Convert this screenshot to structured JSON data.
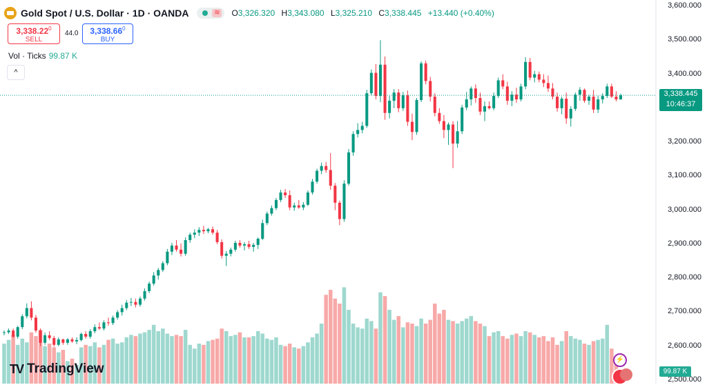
{
  "header": {
    "symbol_title": "Gold Spot / U.S. Dollar · 1D · OANDA",
    "logo_icon": "gold-bar-icon",
    "market_status_icon": "market-open-dot-icon",
    "wave_icon": "data-wave-icon",
    "open_label": "O",
    "open_value": "3,326.320",
    "high_label": "H",
    "high_value": "3,343.080",
    "low_label": "L",
    "low_value": "3,325.210",
    "close_label": "C",
    "close_value": "3,338.445",
    "change_value": "+13.440 (+0.40%)"
  },
  "trade": {
    "sell_price": "3,338.22",
    "sell_price_sup": "0",
    "sell_label": "SELL",
    "spread": "44.0",
    "buy_price": "3,338.66",
    "buy_price_sup": "0",
    "buy_label": "BUY"
  },
  "volume_legend": {
    "label": "Vol · Ticks",
    "value": "99.87 K",
    "collapse_icon": "chevron-up-icon",
    "collapse_glyph": "^"
  },
  "branding": {
    "mark": "TV",
    "name": "TradingView"
  },
  "price_axis": {
    "ticks": [
      "3,600.000",
      "3,500.000",
      "3,400.000",
      "3,300.000",
      "3,200.000",
      "3,100.000",
      "3,000.000",
      "2,900.000",
      "2,800.000",
      "2,700.000",
      "2,600.000",
      "2,500.000"
    ],
    "current_price": "3,338.445",
    "countdown": "10:46:37",
    "volume_tag": "99.87 K"
  },
  "colors": {
    "up": "#089981",
    "down": "#f23645",
    "up_volume": "#9ed8cf",
    "down_volume": "#f7a9a8"
  },
  "events": {
    "event_icon": "lightning-icon",
    "event_glyph": "⚡",
    "flags_icon": "us-flag-icon"
  },
  "chart_data": {
    "type": "candlestick",
    "ylim": [
      2500,
      3600
    ],
    "candles": [
      {
        "o": 2640,
        "h": 2646,
        "l": 2632,
        "c": 2641,
        "v": 64
      },
      {
        "o": 2641,
        "h": 2652,
        "l": 2636,
        "c": 2646,
        "v": 70
      },
      {
        "o": 2646,
        "h": 2652,
        "l": 2624,
        "c": 2628,
        "v": 78
      },
      {
        "o": 2628,
        "h": 2660,
        "l": 2622,
        "c": 2656,
        "v": 62
      },
      {
        "o": 2656,
        "h": 2694,
        "l": 2650,
        "c": 2688,
        "v": 72
      },
      {
        "o": 2688,
        "h": 2726,
        "l": 2682,
        "c": 2712,
        "v": 66
      },
      {
        "o": 2712,
        "h": 2732,
        "l": 2676,
        "c": 2684,
        "v": 82
      },
      {
        "o": 2684,
        "h": 2692,
        "l": 2640,
        "c": 2646,
        "v": 76
      },
      {
        "o": 2646,
        "h": 2652,
        "l": 2600,
        "c": 2610,
        "v": 86
      },
      {
        "o": 2610,
        "h": 2640,
        "l": 2604,
        "c": 2632,
        "v": 60
      },
      {
        "o": 2632,
        "h": 2644,
        "l": 2618,
        "c": 2624,
        "v": 64
      },
      {
        "o": 2624,
        "h": 2630,
        "l": 2598,
        "c": 2604,
        "v": 58
      },
      {
        "o": 2604,
        "h": 2626,
        "l": 2600,
        "c": 2620,
        "v": 50
      },
      {
        "o": 2620,
        "h": 2622,
        "l": 2604,
        "c": 2610,
        "v": 54
      },
      {
        "o": 2610,
        "h": 2624,
        "l": 2604,
        "c": 2620,
        "v": 36
      },
      {
        "o": 2620,
        "h": 2626,
        "l": 2610,
        "c": 2614,
        "v": 40
      },
      {
        "o": 2614,
        "h": 2626,
        "l": 2606,
        "c": 2618,
        "v": 30
      },
      {
        "o": 2618,
        "h": 2640,
        "l": 2614,
        "c": 2636,
        "v": 58
      },
      {
        "o": 2636,
        "h": 2644,
        "l": 2622,
        "c": 2628,
        "v": 62
      },
      {
        "o": 2628,
        "h": 2650,
        "l": 2622,
        "c": 2644,
        "v": 60
      },
      {
        "o": 2644,
        "h": 2664,
        "l": 2638,
        "c": 2656,
        "v": 66
      },
      {
        "o": 2656,
        "h": 2670,
        "l": 2648,
        "c": 2652,
        "v": 58
      },
      {
        "o": 2652,
        "h": 2676,
        "l": 2646,
        "c": 2670,
        "v": 62
      },
      {
        "o": 2670,
        "h": 2684,
        "l": 2660,
        "c": 2668,
        "v": 70
      },
      {
        "o": 2668,
        "h": 2690,
        "l": 2662,
        "c": 2684,
        "v": 72
      },
      {
        "o": 2684,
        "h": 2706,
        "l": 2678,
        "c": 2700,
        "v": 64
      },
      {
        "o": 2700,
        "h": 2722,
        "l": 2690,
        "c": 2712,
        "v": 66
      },
      {
        "o": 2712,
        "h": 2736,
        "l": 2706,
        "c": 2728,
        "v": 74
      },
      {
        "o": 2728,
        "h": 2742,
        "l": 2718,
        "c": 2730,
        "v": 78
      },
      {
        "o": 2730,
        "h": 2740,
        "l": 2714,
        "c": 2722,
        "v": 76
      },
      {
        "o": 2722,
        "h": 2746,
        "l": 2716,
        "c": 2740,
        "v": 80
      },
      {
        "o": 2740,
        "h": 2770,
        "l": 2734,
        "c": 2762,
        "v": 82
      },
      {
        "o": 2762,
        "h": 2790,
        "l": 2756,
        "c": 2784,
        "v": 86
      },
      {
        "o": 2784,
        "h": 2818,
        "l": 2778,
        "c": 2808,
        "v": 94
      },
      {
        "o": 2808,
        "h": 2830,
        "l": 2796,
        "c": 2824,
        "v": 84
      },
      {
        "o": 2824,
        "h": 2850,
        "l": 2818,
        "c": 2844,
        "v": 88
      },
      {
        "o": 2844,
        "h": 2886,
        "l": 2838,
        "c": 2878,
        "v": 80
      },
      {
        "o": 2878,
        "h": 2904,
        "l": 2868,
        "c": 2896,
        "v": 76
      },
      {
        "o": 2896,
        "h": 2912,
        "l": 2878,
        "c": 2884,
        "v": 78
      },
      {
        "o": 2884,
        "h": 2902,
        "l": 2864,
        "c": 2872,
        "v": 76
      },
      {
        "o": 2872,
        "h": 2920,
        "l": 2866,
        "c": 2912,
        "v": 86
      },
      {
        "o": 2912,
        "h": 2934,
        "l": 2904,
        "c": 2928,
        "v": 62
      },
      {
        "o": 2928,
        "h": 2944,
        "l": 2918,
        "c": 2934,
        "v": 56
      },
      {
        "o": 2934,
        "h": 2950,
        "l": 2924,
        "c": 2942,
        "v": 64
      },
      {
        "o": 2942,
        "h": 2954,
        "l": 2930,
        "c": 2938,
        "v": 62
      },
      {
        "o": 2938,
        "h": 2948,
        "l": 2932,
        "c": 2944,
        "v": 68
      },
      {
        "o": 2944,
        "h": 2952,
        "l": 2928,
        "c": 2934,
        "v": 70
      },
      {
        "o": 2934,
        "h": 2942,
        "l": 2900,
        "c": 2906,
        "v": 72
      },
      {
        "o": 2906,
        "h": 2914,
        "l": 2858,
        "c": 2866,
        "v": 88
      },
      {
        "o": 2866,
        "h": 2880,
        "l": 2836,
        "c": 2872,
        "v": 84
      },
      {
        "o": 2872,
        "h": 2890,
        "l": 2864,
        "c": 2884,
        "v": 76
      },
      {
        "o": 2884,
        "h": 2910,
        "l": 2878,
        "c": 2904,
        "v": 78
      },
      {
        "o": 2904,
        "h": 2912,
        "l": 2890,
        "c": 2896,
        "v": 82
      },
      {
        "o": 2896,
        "h": 2906,
        "l": 2882,
        "c": 2900,
        "v": 74
      },
      {
        "o": 2900,
        "h": 2910,
        "l": 2886,
        "c": 2892,
        "v": 74
      },
      {
        "o": 2892,
        "h": 2904,
        "l": 2878,
        "c": 2898,
        "v": 76
      },
      {
        "o": 2898,
        "h": 2920,
        "l": 2886,
        "c": 2916,
        "v": 84
      },
      {
        "o": 2916,
        "h": 2972,
        "l": 2912,
        "c": 2962,
        "v": 80
      },
      {
        "o": 2962,
        "h": 2996,
        "l": 2956,
        "c": 2990,
        "v": 72
      },
      {
        "o": 2990,
        "h": 3014,
        "l": 2984,
        "c": 3006,
        "v": 70
      },
      {
        "o": 3006,
        "h": 3036,
        "l": 3000,
        "c": 3030,
        "v": 74
      },
      {
        "o": 3030,
        "h": 3060,
        "l": 3024,
        "c": 3052,
        "v": 62
      },
      {
        "o": 3052,
        "h": 3062,
        "l": 3036,
        "c": 3044,
        "v": 60
      },
      {
        "o": 3044,
        "h": 3058,
        "l": 3000,
        "c": 3008,
        "v": 64
      },
      {
        "o": 3008,
        "h": 3022,
        "l": 2998,
        "c": 3014,
        "v": 58
      },
      {
        "o": 3014,
        "h": 3030,
        "l": 3004,
        "c": 3008,
        "v": 56
      },
      {
        "o": 3008,
        "h": 3024,
        "l": 3000,
        "c": 3016,
        "v": 60
      },
      {
        "o": 3016,
        "h": 3058,
        "l": 3012,
        "c": 3052,
        "v": 66
      },
      {
        "o": 3052,
        "h": 3092,
        "l": 3046,
        "c": 3084,
        "v": 74
      },
      {
        "o": 3084,
        "h": 3122,
        "l": 3078,
        "c": 3116,
        "v": 80
      },
      {
        "o": 3116,
        "h": 3140,
        "l": 3106,
        "c": 3130,
        "v": 96
      },
      {
        "o": 3130,
        "h": 3142,
        "l": 3110,
        "c": 3118,
        "v": 142
      },
      {
        "o": 3118,
        "h": 3168,
        "l": 3060,
        "c": 3072,
        "v": 150
      },
      {
        "o": 3072,
        "h": 3080,
        "l": 3000,
        "c": 3022,
        "v": 136
      },
      {
        "o": 3022,
        "h": 3028,
        "l": 2956,
        "c": 2974,
        "v": 128
      },
      {
        "o": 2974,
        "h": 3088,
        "l": 2966,
        "c": 3078,
        "v": 154
      },
      {
        "o": 3078,
        "h": 3180,
        "l": 3072,
        "c": 3170,
        "v": 118
      },
      {
        "o": 3170,
        "h": 3232,
        "l": 3160,
        "c": 3224,
        "v": 96
      },
      {
        "o": 3224,
        "h": 3256,
        "l": 3214,
        "c": 3236,
        "v": 90
      },
      {
        "o": 3236,
        "h": 3260,
        "l": 3226,
        "c": 3248,
        "v": 88
      },
      {
        "o": 3248,
        "h": 3354,
        "l": 3242,
        "c": 3344,
        "v": 104
      },
      {
        "o": 3344,
        "h": 3414,
        "l": 3338,
        "c": 3404,
        "v": 100
      },
      {
        "o": 3404,
        "h": 3430,
        "l": 3326,
        "c": 3336,
        "v": 88
      },
      {
        "o": 3336,
        "h": 3500,
        "l": 3318,
        "c": 3428,
        "v": 146
      },
      {
        "o": 3428,
        "h": 3452,
        "l": 3266,
        "c": 3286,
        "v": 140
      },
      {
        "o": 3286,
        "h": 3336,
        "l": 3270,
        "c": 3322,
        "v": 118
      },
      {
        "o": 3322,
        "h": 3356,
        "l": 3300,
        "c": 3346,
        "v": 102
      },
      {
        "o": 3346,
        "h": 3356,
        "l": 3288,
        "c": 3300,
        "v": 108
      },
      {
        "o": 3300,
        "h": 3348,
        "l": 3292,
        "c": 3338,
        "v": 90
      },
      {
        "o": 3338,
        "h": 3352,
        "l": 3248,
        "c": 3260,
        "v": 98
      },
      {
        "o": 3260,
        "h": 3284,
        "l": 3206,
        "c": 3230,
        "v": 96
      },
      {
        "o": 3230,
        "h": 3330,
        "l": 3222,
        "c": 3324,
        "v": 92
      },
      {
        "o": 3324,
        "h": 3438,
        "l": 3318,
        "c": 3432,
        "v": 104
      },
      {
        "o": 3432,
        "h": 3440,
        "l": 3370,
        "c": 3380,
        "v": 96
      },
      {
        "o": 3380,
        "h": 3392,
        "l": 3320,
        "c": 3334,
        "v": 102
      },
      {
        "o": 3334,
        "h": 3344,
        "l": 3276,
        "c": 3286,
        "v": 128
      },
      {
        "o": 3286,
        "h": 3300,
        "l": 3254,
        "c": 3262,
        "v": 112
      },
      {
        "o": 3262,
        "h": 3280,
        "l": 3212,
        "c": 3236,
        "v": 118
      },
      {
        "o": 3236,
        "h": 3258,
        "l": 3192,
        "c": 3252,
        "v": 102
      },
      {
        "o": 3252,
        "h": 3262,
        "l": 3124,
        "c": 3196,
        "v": 100
      },
      {
        "o": 3196,
        "h": 3262,
        "l": 3184,
        "c": 3232,
        "v": 96
      },
      {
        "o": 3232,
        "h": 3310,
        "l": 3224,
        "c": 3302,
        "v": 100
      },
      {
        "o": 3302,
        "h": 3348,
        "l": 3294,
        "c": 3326,
        "v": 104
      },
      {
        "o": 3326,
        "h": 3364,
        "l": 3308,
        "c": 3358,
        "v": 108
      },
      {
        "o": 3358,
        "h": 3370,
        "l": 3316,
        "c": 3330,
        "v": 100
      },
      {
        "o": 3330,
        "h": 3346,
        "l": 3280,
        "c": 3290,
        "v": 96
      },
      {
        "o": 3290,
        "h": 3320,
        "l": 3262,
        "c": 3306,
        "v": 92
      },
      {
        "o": 3306,
        "h": 3320,
        "l": 3296,
        "c": 3300,
        "v": 76
      },
      {
        "o": 3300,
        "h": 3346,
        "l": 3294,
        "c": 3336,
        "v": 82
      },
      {
        "o": 3336,
        "h": 3390,
        "l": 3330,
        "c": 3382,
        "v": 84
      },
      {
        "o": 3382,
        "h": 3400,
        "l": 3356,
        "c": 3364,
        "v": 76
      },
      {
        "o": 3364,
        "h": 3378,
        "l": 3310,
        "c": 3322,
        "v": 72
      },
      {
        "o": 3322,
        "h": 3350,
        "l": 3306,
        "c": 3340,
        "v": 78
      },
      {
        "o": 3340,
        "h": 3360,
        "l": 3316,
        "c": 3326,
        "v": 80
      },
      {
        "o": 3326,
        "h": 3372,
        "l": 3320,
        "c": 3364,
        "v": 76
      },
      {
        "o": 3364,
        "h": 3450,
        "l": 3356,
        "c": 3436,
        "v": 84
      },
      {
        "o": 3436,
        "h": 3448,
        "l": 3382,
        "c": 3390,
        "v": 82
      },
      {
        "o": 3390,
        "h": 3410,
        "l": 3376,
        "c": 3400,
        "v": 78
      },
      {
        "o": 3400,
        "h": 3408,
        "l": 3376,
        "c": 3384,
        "v": 74
      },
      {
        "o": 3384,
        "h": 3400,
        "l": 3362,
        "c": 3374,
        "v": 76
      },
      {
        "o": 3374,
        "h": 3396,
        "l": 3348,
        "c": 3358,
        "v": 68
      },
      {
        "o": 3358,
        "h": 3374,
        "l": 3326,
        "c": 3334,
        "v": 74
      },
      {
        "o": 3334,
        "h": 3346,
        "l": 3290,
        "c": 3300,
        "v": 62
      },
      {
        "o": 3300,
        "h": 3334,
        "l": 3282,
        "c": 3328,
        "v": 68
      },
      {
        "o": 3328,
        "h": 3346,
        "l": 3254,
        "c": 3270,
        "v": 84
      },
      {
        "o": 3270,
        "h": 3306,
        "l": 3246,
        "c": 3298,
        "v": 76
      },
      {
        "o": 3298,
        "h": 3346,
        "l": 3292,
        "c": 3340,
        "v": 72
      },
      {
        "o": 3340,
        "h": 3362,
        "l": 3322,
        "c": 3354,
        "v": 70
      },
      {
        "o": 3354,
        "h": 3358,
        "l": 3316,
        "c": 3322,
        "v": 64
      },
      {
        "o": 3322,
        "h": 3340,
        "l": 3310,
        "c": 3334,
        "v": 62
      },
      {
        "o": 3334,
        "h": 3354,
        "l": 3286,
        "c": 3296,
        "v": 68
      },
      {
        "o": 3296,
        "h": 3336,
        "l": 3286,
        "c": 3326,
        "v": 70
      },
      {
        "o": 3326,
        "h": 3344,
        "l": 3314,
        "c": 3336,
        "v": 72
      },
      {
        "o": 3336,
        "h": 3372,
        "l": 3330,
        "c": 3364,
        "v": 94
      },
      {
        "o": 3364,
        "h": 3372,
        "l": 3330,
        "c": 3334,
        "v": 56
      },
      {
        "o": 3334,
        "h": 3350,
        "l": 3320,
        "c": 3326,
        "v": 40
      },
      {
        "o": 3326,
        "h": 3343,
        "l": 3325,
        "c": 3338,
        "v": 20
      }
    ]
  }
}
